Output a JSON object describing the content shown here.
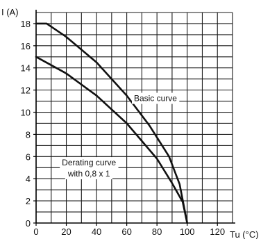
{
  "chart_data": {
    "type": "line",
    "ylabel": "I (A)",
    "xlabel": "Tu (°C)",
    "xlim": [
      0,
      130
    ],
    "ylim": [
      0,
      19
    ],
    "x_ticks": [
      0,
      20,
      40,
      60,
      80,
      100,
      120
    ],
    "y_ticks": [
      0,
      2,
      4,
      6,
      8,
      10,
      12,
      14,
      16,
      18
    ],
    "x_minor_step": 10,
    "y_minor_step": 1,
    "grid": true,
    "line_color": "#111111",
    "series": [
      {
        "name": "Basic curve",
        "x": [
          0,
          7,
          20,
          40,
          60,
          75,
          88,
          95,
          100
        ],
        "y": [
          18,
          18,
          16.8,
          14.5,
          11.5,
          8.8,
          6,
          3.5,
          0
        ]
      },
      {
        "name": "Derating curve with 0,8 x 1",
        "x": [
          0,
          20,
          40,
          60,
          80,
          90,
          97,
          100
        ],
        "y": [
          15,
          13.5,
          11.5,
          9,
          5.8,
          3.6,
          1.9,
          0
        ]
      }
    ],
    "annotations": [
      {
        "text": "Basic curve",
        "x": 79,
        "y": 11
      },
      {
        "text": "Derating curve",
        "x": 35,
        "y": 5.2
      },
      {
        "text": "with 0,8 x 1",
        "x": 35,
        "y": 4.2
      }
    ]
  }
}
